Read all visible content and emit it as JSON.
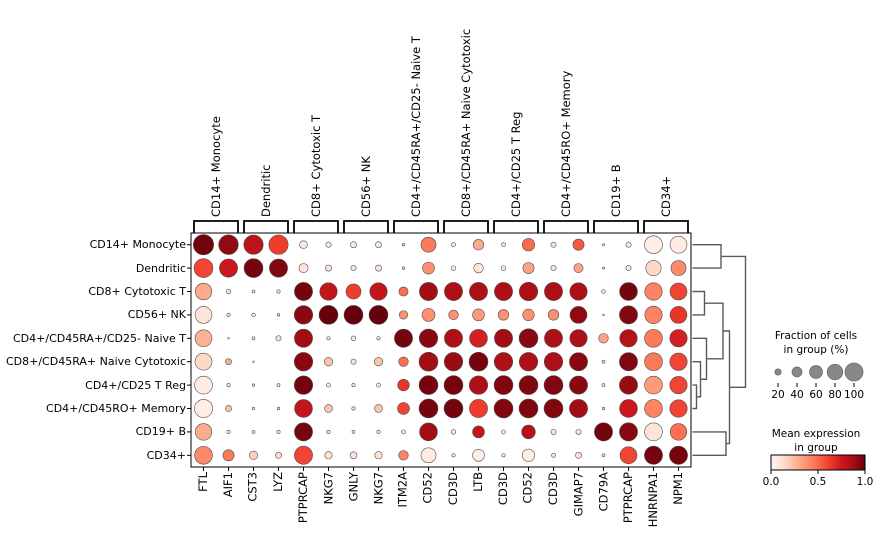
{
  "chart_data": {
    "type": "dotplot",
    "rows": [
      "CD14+ Monocyte",
      "Dendritic",
      "CD8+ Cytotoxic T",
      "CD56+ NK",
      "CD4+/CD45RA+/CD25- Naive T",
      "CD8+/CD45RA+ Naive Cytotoxic",
      "CD4+/CD25 T Reg",
      "CD4+/CD45RO+ Memory",
      "CD19+ B",
      "CD34+"
    ],
    "columns": [
      "FTL",
      "AIF1",
      "CST3",
      "LYZ",
      "PTPRCAP",
      "NKG7",
      "GNLY",
      "NKG7",
      "ITM2A",
      "CD52",
      "CD3D",
      "LTB",
      "CD3D",
      "CD52",
      "CD3D",
      "GIMAP7",
      "CD79A",
      "PTPRCAP",
      "HNRNPA1",
      "NPM1"
    ],
    "var_groups": [
      {
        "label": "CD14+ Monocyte",
        "start": 0,
        "end": 1
      },
      {
        "label": "Dendritic",
        "start": 2,
        "end": 3
      },
      {
        "label": "CD8+ Cytotoxic T",
        "start": 4,
        "end": 5
      },
      {
        "label": "CD56+ NK",
        "start": 6,
        "end": 7
      },
      {
        "label": "CD4+/CD45RA+/CD25- Naive T",
        "start": 8,
        "end": 9
      },
      {
        "label": "CD8+/CD45RA+ Naive Cytotoxic",
        "start": 10,
        "end": 11
      },
      {
        "label": "CD4+/CD25 T Reg",
        "start": 12,
        "end": 13
      },
      {
        "label": "CD4+/CD45RO+ Memory",
        "start": 14,
        "end": 15
      },
      {
        "label": "CD19+ B",
        "start": 16,
        "end": 17
      },
      {
        "label": "CD34+",
        "start": 18,
        "end": 19
      }
    ],
    "fraction": [
      [
        0.95,
        0.9,
        0.88,
        0.88,
        0.22,
        0.12,
        0.15,
        0.15,
        0.04,
        0.6,
        0.08,
        0.35,
        0.08,
        0.45,
        0.12,
        0.38,
        0.03,
        0.12,
        0.78,
        0.72
      ],
      [
        0.85,
        0.8,
        0.85,
        0.8,
        0.28,
        0.15,
        0.12,
        0.15,
        0.04,
        0.42,
        0.1,
        0.3,
        0.1,
        0.38,
        0.12,
        0.28,
        0.03,
        0.12,
        0.62,
        0.6
      ],
      [
        0.7,
        0.1,
        0.05,
        0.06,
        0.8,
        0.75,
        0.6,
        0.75,
        0.28,
        0.8,
        0.8,
        0.8,
        0.8,
        0.82,
        0.8,
        0.75,
        0.07,
        0.78,
        0.75,
        0.72
      ],
      [
        0.72,
        0.06,
        0.07,
        0.04,
        0.82,
        0.85,
        0.85,
        0.85,
        0.25,
        0.48,
        0.3,
        0.42,
        0.35,
        0.4,
        0.35,
        0.72,
        0.02,
        0.8,
        0.75,
        0.72
      ],
      [
        0.72,
        0.02,
        0.05,
        0.12,
        0.8,
        0.06,
        0.1,
        0.06,
        0.8,
        0.82,
        0.8,
        0.78,
        0.8,
        0.85,
        0.8,
        0.75,
        0.3,
        0.75,
        0.78,
        0.75
      ],
      [
        0.72,
        0.15,
        0.02,
        0.0,
        0.82,
        0.25,
        0.12,
        0.25,
        0.3,
        0.85,
        0.82,
        0.85,
        0.82,
        0.82,
        0.82,
        0.8,
        0.05,
        0.8,
        0.78,
        0.75
      ],
      [
        0.78,
        0.06,
        0.04,
        0.05,
        0.82,
        0.08,
        0.06,
        0.08,
        0.4,
        0.85,
        0.85,
        0.82,
        0.85,
        0.85,
        0.85,
        0.8,
        0.05,
        0.8,
        0.78,
        0.75
      ],
      [
        0.8,
        0.15,
        0.04,
        0.04,
        0.78,
        0.22,
        0.06,
        0.22,
        0.42,
        0.85,
        0.85,
        0.8,
        0.85,
        0.85,
        0.85,
        0.8,
        0.04,
        0.78,
        0.78,
        0.75
      ],
      [
        0.7,
        0.06,
        0.05,
        0.06,
        0.8,
        0.06,
        0.05,
        0.06,
        0.08,
        0.78,
        0.1,
        0.42,
        0.08,
        0.52,
        0.12,
        0.12,
        0.8,
        0.8,
        0.78,
        0.7
      ],
      [
        0.78,
        0.38,
        0.25,
        0.15,
        0.8,
        0.2,
        0.18,
        0.2,
        0.3,
        0.6,
        0.06,
        0.42,
        0.06,
        0.45,
        0.08,
        0.15,
        0.05,
        0.72,
        0.8,
        0.8
      ]
    ],
    "mean_expression": [
      [
        0.98,
        0.92,
        0.8,
        0.62,
        0.08,
        0.08,
        0.08,
        0.08,
        0.08,
        0.45,
        0.08,
        0.3,
        0.08,
        0.5,
        0.12,
        0.55,
        0.1,
        0.08,
        0.04,
        0.06
      ],
      [
        0.6,
        0.75,
        0.97,
        0.95,
        0.1,
        0.1,
        0.1,
        0.1,
        0.08,
        0.38,
        0.1,
        0.1,
        0.1,
        0.32,
        0.1,
        0.32,
        0.08,
        0.1,
        0.15,
        0.4
      ],
      [
        0.3,
        0.1,
        0.08,
        0.08,
        0.97,
        0.78,
        0.62,
        0.78,
        0.48,
        0.88,
        0.85,
        0.85,
        0.85,
        0.85,
        0.85,
        0.85,
        0.1,
        0.97,
        0.42,
        0.6
      ],
      [
        0.1,
        0.1,
        0.08,
        0.08,
        0.93,
        1.0,
        1.0,
        1.0,
        0.38,
        0.38,
        0.38,
        0.35,
        0.38,
        0.38,
        0.38,
        0.92,
        0.08,
        0.95,
        0.42,
        0.65
      ],
      [
        0.28,
        0.08,
        0.08,
        0.12,
        0.88,
        0.08,
        0.1,
        0.08,
        0.97,
        0.93,
        0.85,
        0.72,
        0.88,
        0.93,
        0.85,
        0.85,
        0.32,
        0.82,
        0.45,
        0.72
      ],
      [
        0.15,
        0.28,
        0.08,
        0.0,
        0.93,
        0.22,
        0.12,
        0.22,
        0.48,
        0.88,
        0.9,
        0.97,
        0.85,
        0.85,
        0.85,
        0.93,
        0.1,
        0.95,
        0.45,
        0.6
      ],
      [
        0.06,
        0.08,
        0.08,
        0.08,
        0.97,
        0.08,
        0.08,
        0.08,
        0.65,
        0.97,
        0.97,
        0.85,
        0.95,
        0.95,
        0.95,
        0.93,
        0.08,
        0.9,
        0.35,
        0.6
      ],
      [
        0.04,
        0.22,
        0.08,
        0.08,
        0.78,
        0.22,
        0.08,
        0.22,
        0.6,
        0.97,
        0.97,
        0.62,
        0.95,
        0.95,
        0.95,
        0.88,
        0.08,
        0.75,
        0.42,
        0.6
      ],
      [
        0.3,
        0.08,
        0.08,
        0.08,
        0.97,
        0.08,
        0.08,
        0.08,
        0.1,
        0.88,
        0.1,
        0.78,
        0.1,
        0.82,
        0.1,
        0.12,
        0.98,
        0.93,
        0.1,
        0.48
      ],
      [
        0.4,
        0.45,
        0.18,
        0.15,
        0.6,
        0.12,
        0.1,
        0.12,
        0.42,
        0.06,
        0.08,
        0.04,
        0.08,
        0.04,
        0.08,
        0.12,
        0.08,
        0.6,
        0.97,
        0.97
      ]
    ],
    "size_legend": {
      "title": "Fraction of cells\nin group (%)",
      "ticks": [
        "20",
        "40",
        "60",
        "80",
        "100"
      ],
      "tick_values": [
        20,
        40,
        60,
        80,
        100
      ]
    },
    "color_legend": {
      "title": "Mean expression\nin group",
      "ticks": [
        "0.0",
        "0.5",
        "1.0"
      ],
      "cmap": [
        "#fff5f0",
        "#fee0d2",
        "#fcbba1",
        "#fc9272",
        "#fb6a4a",
        "#ef3b2c",
        "#cb181d",
        "#a50f15",
        "#67000d"
      ]
    },
    "dendrogram": {
      "merges": [
        {
          "id": "M0",
          "a": "L6",
          "b": "L7",
          "x": 696.5
        },
        {
          "id": "M1",
          "a": "L5",
          "b": "M0",
          "x": 700.5
        },
        {
          "id": "M2",
          "a": "L2",
          "b": "L3",
          "x": 704.5
        },
        {
          "id": "M3",
          "a": "L4",
          "b": "M1",
          "x": 706.5
        },
        {
          "id": "M4",
          "a": "L0",
          "b": "L1",
          "x": 721.0
        },
        {
          "id": "M5",
          "a": "M2",
          "b": "M3",
          "x": 723.0
        },
        {
          "id": "M6",
          "a": "L8",
          "b": "L9",
          "x": 726.0
        },
        {
          "id": "M7",
          "a": "M5",
          "b": "M6",
          "x": 729.5
        },
        {
          "id": "M8",
          "a": "M4",
          "b": "M7",
          "x": 745.5
        }
      ]
    },
    "colors": {
      "dot_edge": "#4d4d4d",
      "axis": "#000000",
      "bracket": "#000000",
      "dendrogram": "#5a5a5a",
      "legend_dot_fill": "#888888",
      "legend_dot_edge": "#6e6e6e"
    }
  }
}
